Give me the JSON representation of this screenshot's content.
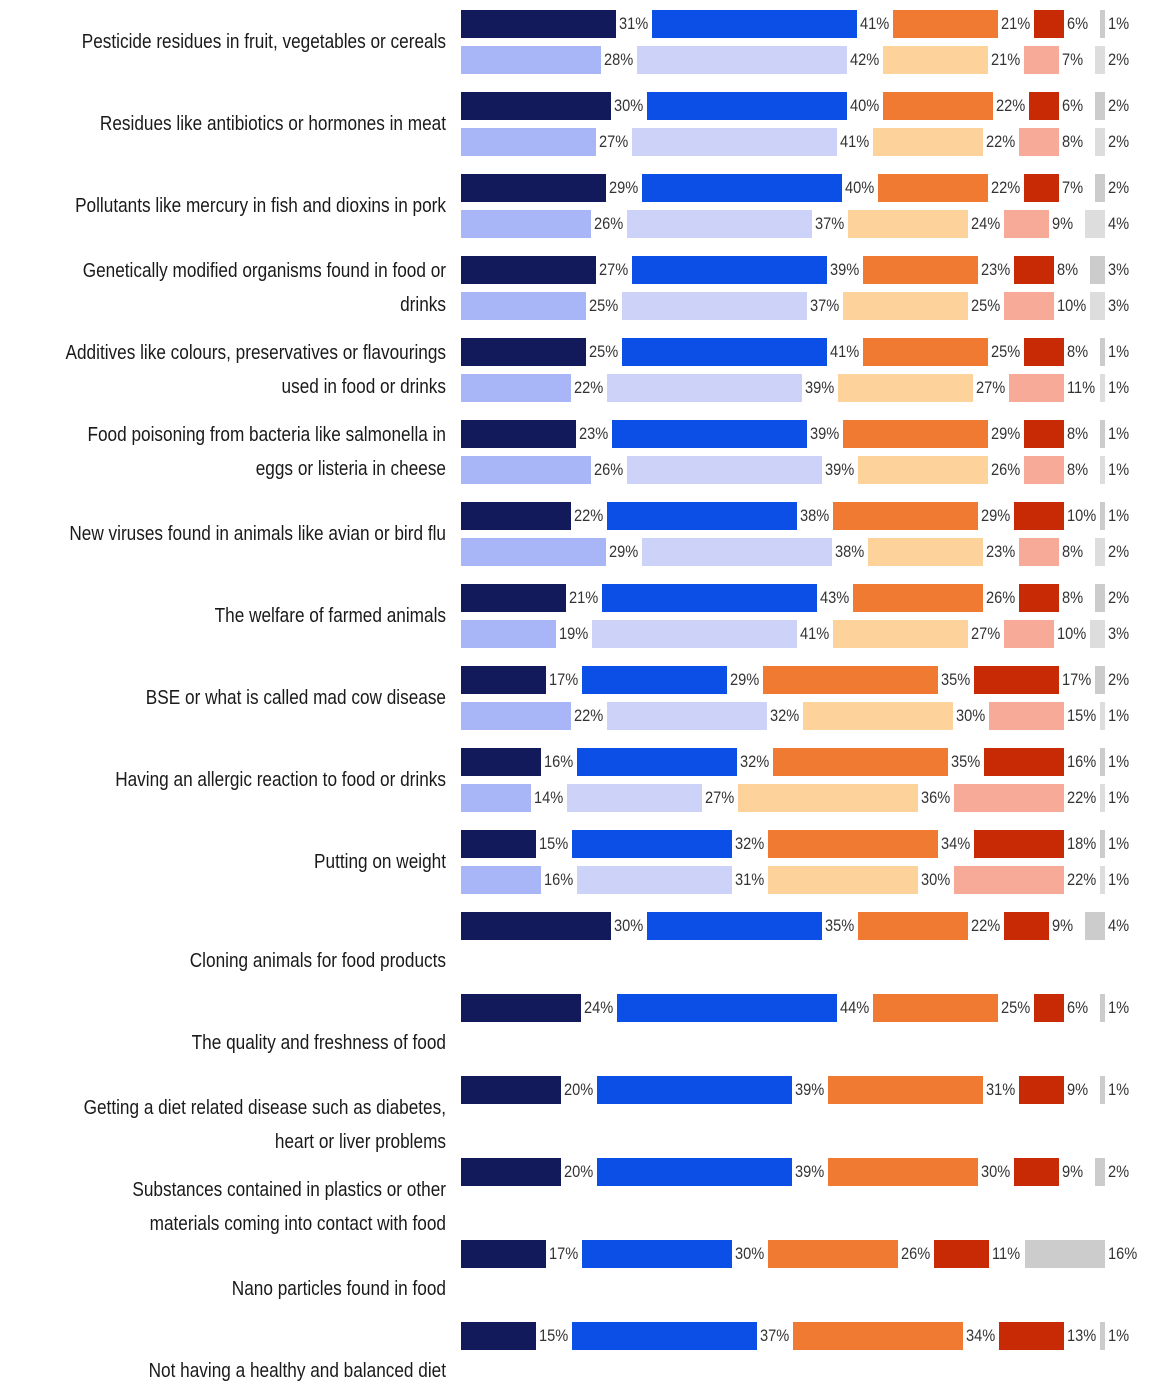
{
  "chart_data": {
    "type": "bar",
    "orientation": "horizontal",
    "stacked": true,
    "units": "%",
    "colors": {
      "primary": [
        "#121a5c",
        "#0b4fe6",
        "#f07a32",
        "#c92a06",
        "#cccccc"
      ],
      "secondary": [
        "#a8b6f8",
        "#cdd3f8",
        "#fdd39b",
        "#f8aa98",
        "#dddddd"
      ]
    },
    "categories": [
      {
        "label": "Pesticide residues in fruit, vegetables or cereals",
        "rows": [
          [
            31,
            41,
            21,
            6,
            1
          ],
          [
            28,
            42,
            21,
            7,
            2
          ]
        ]
      },
      {
        "label": "Residues like antibiotics or hormones in meat",
        "rows": [
          [
            30,
            40,
            22,
            6,
            2
          ],
          [
            27,
            41,
            22,
            8,
            2
          ]
        ]
      },
      {
        "label": "Pollutants like mercury in fish and dioxins in pork",
        "rows": [
          [
            29,
            40,
            22,
            7,
            2
          ],
          [
            26,
            37,
            24,
            9,
            4
          ]
        ]
      },
      {
        "label": "Genetically modified organisms found in food or drinks",
        "rows": [
          [
            27,
            39,
            23,
            8,
            3
          ],
          [
            25,
            37,
            25,
            10,
            3
          ]
        ]
      },
      {
        "label": "Additives like colours, preservatives or flavourings used in food or drinks",
        "rows": [
          [
            25,
            41,
            25,
            8,
            1
          ],
          [
            22,
            39,
            27,
            11,
            1
          ]
        ]
      },
      {
        "label": "Food poisoning from bacteria like salmonella in eggs or listeria in cheese",
        "rows": [
          [
            23,
            39,
            29,
            8,
            1
          ],
          [
            26,
            39,
            26,
            8,
            1
          ]
        ]
      },
      {
        "label": "New viruses found in animals like avian or bird flu",
        "rows": [
          [
            22,
            38,
            29,
            10,
            1
          ],
          [
            29,
            38,
            23,
            8,
            2
          ]
        ]
      },
      {
        "label": "The welfare of farmed animals",
        "rows": [
          [
            21,
            43,
            26,
            8,
            2
          ],
          [
            19,
            41,
            27,
            10,
            3
          ]
        ]
      },
      {
        "label": "BSE or what is called mad cow disease",
        "rows": [
          [
            17,
            29,
            35,
            17,
            2
          ],
          [
            22,
            32,
            30,
            15,
            1
          ]
        ]
      },
      {
        "label": "Having an allergic reaction to food or drinks",
        "rows": [
          [
            16,
            32,
            35,
            16,
            1
          ],
          [
            14,
            27,
            36,
            22,
            1
          ]
        ]
      },
      {
        "label": "Putting on weight",
        "rows": [
          [
            15,
            32,
            34,
            18,
            1
          ],
          [
            16,
            31,
            30,
            22,
            1
          ]
        ]
      },
      {
        "label": "Cloning animals for food products",
        "rows": [
          [
            30,
            35,
            22,
            9,
            4
          ]
        ]
      },
      {
        "label": "The quality and freshness of food",
        "rows": [
          [
            24,
            44,
            25,
            6,
            1
          ]
        ]
      },
      {
        "label": "Getting a diet related disease such as diabetes, heart or liver problems",
        "rows": [
          [
            20,
            39,
            31,
            9,
            1
          ]
        ]
      },
      {
        "label": "Substances contained in plastics or other materials coming into contact with food",
        "rows": [
          [
            20,
            39,
            30,
            9,
            2
          ]
        ]
      },
      {
        "label": "Nano particles found in food",
        "rows": [
          [
            17,
            30,
            26,
            11,
            16
          ]
        ]
      },
      {
        "label": "Not having a healthy and balanced diet",
        "rows": [
          [
            15,
            37,
            34,
            13,
            1
          ]
        ]
      }
    ]
  }
}
